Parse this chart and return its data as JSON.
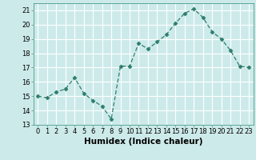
{
  "x": [
    0,
    1,
    2,
    3,
    4,
    5,
    6,
    7,
    8,
    9,
    10,
    11,
    12,
    13,
    14,
    15,
    16,
    17,
    18,
    19,
    20,
    21,
    22,
    23
  ],
  "y": [
    15.0,
    14.9,
    15.3,
    15.5,
    16.3,
    15.2,
    14.7,
    14.3,
    13.4,
    17.1,
    17.1,
    18.7,
    18.3,
    18.8,
    19.3,
    20.1,
    20.8,
    21.1,
    20.5,
    19.5,
    19.0,
    18.2,
    17.1,
    17.0
  ],
  "line_color": "#2d7d6e",
  "marker": "D",
  "marker_size": 2.5,
  "bg_color": "#cdeaea",
  "grid_color": "#ffffff",
  "xlabel": "Humidex (Indice chaleur)",
  "xlim": [
    -0.5,
    23.5
  ],
  "ylim": [
    13,
    21.5
  ],
  "yticks": [
    13,
    14,
    15,
    16,
    17,
    18,
    19,
    20,
    21
  ],
  "xticks": [
    0,
    1,
    2,
    3,
    4,
    5,
    6,
    7,
    8,
    9,
    10,
    11,
    12,
    13,
    14,
    15,
    16,
    17,
    18,
    19,
    20,
    21,
    22,
    23
  ],
  "tick_label_fontsize": 6.0,
  "xlabel_fontsize": 7.5
}
